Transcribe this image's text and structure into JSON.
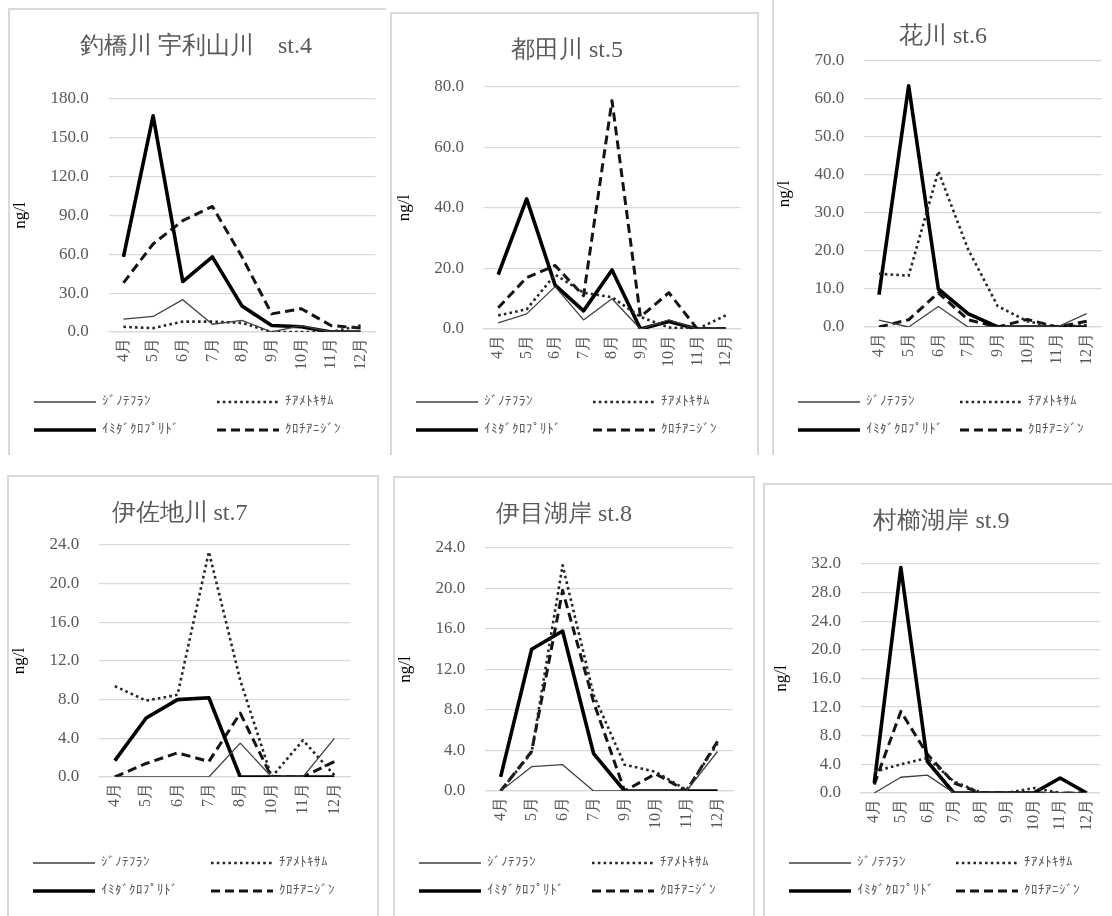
{
  "chart_data": [
    {
      "type": "line",
      "title": "釣橋川 宇利山川　st.4",
      "ylabel": "ng/l",
      "categories": [
        "4月",
        "5月",
        "6月",
        "7月",
        "8月",
        "9月",
        "10月",
        "11月",
        "12月"
      ],
      "series": [
        {
          "name": "ｼﾞﾉﾃﾌﾗﾝ",
          "color": "#404040",
          "line_style": "solid",
          "values": [
            10,
            12,
            25,
            6,
            9,
            0,
            5,
            0,
            0
          ]
        },
        {
          "name": "ﾁｱﾒﾄｷｻﾑ",
          "color": "#262626",
          "line_style": "dotted",
          "values": [
            4,
            3,
            8,
            8,
            7,
            0,
            0,
            0,
            5
          ]
        },
        {
          "name": "ｲﾐﾀﾞｸﾛﾌﾟﾘﾄﾞ",
          "color": "#000000",
          "line_style": "solid",
          "values": [
            58,
            167,
            39,
            58,
            20,
            5,
            4,
            0,
            0
          ]
        },
        {
          "name": "ｸﾛﾁｱﾆｼﾞﾝ",
          "color": "#141414",
          "line_style": "dashed",
          "values": [
            38,
            68,
            86,
            97,
            58,
            14,
            18,
            5,
            3
          ]
        }
      ],
      "ylim": [
        0,
        180
      ],
      "yticks": [
        {
          "value": 0,
          "label": "0.0"
        },
        {
          "value": 30,
          "label": "30.0"
        },
        {
          "value": 60,
          "label": "60.0"
        },
        {
          "value": 90,
          "label": "90.0"
        },
        {
          "value": 120,
          "label": "120.0"
        },
        {
          "value": 150,
          "label": "150.0"
        },
        {
          "value": 180,
          "label": "180.0"
        }
      ],
      "grid": "y",
      "legend": "bottom",
      "marker": "none"
    },
    {
      "type": "line",
      "title": "都田川 st.5",
      "ylabel": "ng/l",
      "categories": [
        "4月",
        "5月",
        "6月",
        "7月",
        "8月",
        "9月",
        "10月",
        "11月",
        "12月"
      ],
      "series": [
        {
          "name": "ｼﾞﾉﾃﾌﾗﾝ",
          "color": "#404040",
          "line_style": "solid",
          "values": [
            2,
            5,
            14,
            3,
            10,
            0,
            3,
            0,
            0
          ]
        },
        {
          "name": "ﾁｱﾒﾄｷｻﾑ",
          "color": "#262626",
          "line_style": "dotted",
          "values": [
            4.5,
            6.5,
            18,
            12,
            10.5,
            4,
            0.5,
            0,
            4.5
          ]
        },
        {
          "name": "ｲﾐﾀﾞｸﾛﾌﾟﾘﾄﾞ",
          "color": "#000000",
          "line_style": "solid",
          "values": [
            18,
            43,
            14.5,
            6,
            19.5,
            0,
            2.5,
            0,
            0
          ]
        },
        {
          "name": "ｸﾛﾁｱﾆｼﾞﾝ",
          "color": "#141414",
          "line_style": "dashed",
          "values": [
            7,
            17,
            21,
            11,
            75.5,
            4,
            12,
            0,
            0
          ]
        }
      ],
      "ylim": [
        0,
        80
      ],
      "yticks": [
        {
          "value": 0,
          "label": "0.0"
        },
        {
          "value": 20,
          "label": "20.0"
        },
        {
          "value": 40,
          "label": "40.0"
        },
        {
          "value": 60,
          "label": "60.0"
        },
        {
          "value": 80,
          "label": "80.0"
        }
      ],
      "grid": "y",
      "legend": "bottom",
      "marker": "none"
    },
    {
      "type": "line",
      "title": "花川 st.6",
      "ylabel": "ng/l",
      "categories": [
        "4月",
        "5月",
        "6月",
        "7月",
        "9月",
        "10月",
        "11月",
        "12月"
      ],
      "series": [
        {
          "name": "ｼﾞﾉﾃﾌﾗﾝ",
          "color": "#404040",
          "line_style": "solid",
          "values": [
            1.8,
            0,
            5.4,
            0,
            0,
            0,
            0,
            3.5
          ]
        },
        {
          "name": "ﾁｱﾒﾄｷｻﾑ",
          "color": "#262626",
          "line_style": "dotted",
          "values": [
            14,
            13.5,
            41,
            20.5,
            5.5,
            1.5,
            0,
            0.5
          ]
        },
        {
          "name": "ｲﾐﾀﾞｸﾛﾌﾟﾘﾄﾞ",
          "color": "#000000",
          "line_style": "solid",
          "values": [
            8.5,
            63.5,
            10,
            3.5,
            0,
            0,
            0,
            0
          ]
        },
        {
          "name": "ｸﾛﾁｱﾆｼﾞﾝ",
          "color": "#141414",
          "line_style": "dashed",
          "values": [
            0,
            1.9,
            9,
            1.9,
            0,
            2,
            0,
            1.5
          ]
        }
      ],
      "ylim": [
        0,
        70
      ],
      "yticks": [
        {
          "value": 0,
          "label": "0.0"
        },
        {
          "value": 10,
          "label": "10.0"
        },
        {
          "value": 20,
          "label": "20.0"
        },
        {
          "value": 30,
          "label": "30.0"
        },
        {
          "value": 40,
          "label": "40.0"
        },
        {
          "value": 50,
          "label": "50.0"
        },
        {
          "value": 60,
          "label": "60.0"
        },
        {
          "value": 70,
          "label": "70.0"
        }
      ],
      "grid": "y",
      "legend": "bottom",
      "marker": "none"
    },
    {
      "type": "line",
      "title": "伊佐地川 st.7",
      "ylabel": "ng/l",
      "categories": [
        "4月",
        "5月",
        "6月",
        "7月",
        "8月",
        "10月",
        "11月",
        "12月"
      ],
      "series": [
        {
          "name": "ｼﾞﾉﾃﾌﾗﾝ",
          "color": "#404040",
          "line_style": "solid",
          "values": [
            0,
            0,
            0,
            0,
            3.5,
            0,
            0,
            4
          ]
        },
        {
          "name": "ﾁｱﾒﾄｷｻﾑ",
          "color": "#262626",
          "line_style": "dotted",
          "values": [
            9.4,
            7.9,
            8.5,
            23.3,
            10,
            0,
            3.8,
            0.2
          ]
        },
        {
          "name": "ｲﾐﾀﾞｸﾛﾌﾟﾘﾄﾞ",
          "color": "#000000",
          "line_style": "solid",
          "values": [
            1.7,
            6.1,
            8,
            8.2,
            0,
            0,
            0,
            0
          ]
        },
        {
          "name": "ｸﾛﾁｱﾆｼﾞﾝ",
          "color": "#141414",
          "line_style": "dashed",
          "values": [
            0,
            1.4,
            2.5,
            1.6,
            6.6,
            0,
            0,
            1.6
          ]
        }
      ],
      "ylim": [
        0,
        24
      ],
      "yticks": [
        {
          "value": 0,
          "label": "0.0"
        },
        {
          "value": 4,
          "label": "4.0"
        },
        {
          "value": 8,
          "label": "8.0"
        },
        {
          "value": 12,
          "label": "12.0"
        },
        {
          "value": 16,
          "label": "16.0"
        },
        {
          "value": 20,
          "label": "20.0"
        },
        {
          "value": 24,
          "label": "24.0"
        }
      ],
      "grid": "y",
      "legend": "bottom",
      "marker": "none"
    },
    {
      "type": "line",
      "title": "伊目湖岸 st.8",
      "ylabel": "ng/l",
      "categories": [
        "4月",
        "5月",
        "6月",
        "7月",
        "9月",
        "10月",
        "11月",
        "12月"
      ],
      "series": [
        {
          "name": "ｼﾞﾉﾃﾌﾗﾝ",
          "color": "#404040",
          "line_style": "solid",
          "values": [
            0,
            2.4,
            2.6,
            0,
            0,
            0,
            0,
            3.9
          ]
        },
        {
          "name": "ﾁｱﾒﾄｷｻﾑ",
          "color": "#262626",
          "line_style": "dotted",
          "values": [
            0,
            3.8,
            22.3,
            9.5,
            2.6,
            1.9,
            0.1,
            4.7
          ]
        },
        {
          "name": "ｲﾐﾀﾞｸﾛﾌﾟﾘﾄﾞ",
          "color": "#000000",
          "line_style": "solid",
          "values": [
            1.4,
            14,
            15.8,
            3.7,
            0,
            0,
            0,
            0
          ]
        },
        {
          "name": "ｸﾛﾁｱﾆｼﾞﾝ",
          "color": "#141414",
          "line_style": "dashed",
          "values": [
            0,
            3.9,
            19.8,
            8.8,
            0,
            1.7,
            0,
            4.9
          ]
        }
      ],
      "ylim": [
        0,
        24
      ],
      "yticks": [
        {
          "value": 0,
          "label": "0.0"
        },
        {
          "value": 4,
          "label": "4.0"
        },
        {
          "value": 8,
          "label": "8.0"
        },
        {
          "value": 12,
          "label": "12.0"
        },
        {
          "value": 16,
          "label": "16.0"
        },
        {
          "value": 20,
          "label": "20.0"
        },
        {
          "value": 24,
          "label": "24.0"
        }
      ],
      "grid": "y",
      "legend": "bottom",
      "marker": "none"
    },
    {
      "type": "line",
      "title": "村櫛湖岸 st.9",
      "ylabel": "ng/l",
      "categories": [
        "4月",
        "5月",
        "6月",
        "7月",
        "8月",
        "9月",
        "10月",
        "11月",
        "12月"
      ],
      "series": [
        {
          "name": "ｼﾞﾉﾃﾌﾗﾝ",
          "color": "#404040",
          "line_style": "solid",
          "values": [
            0,
            2.2,
            2.5,
            0,
            0,
            0,
            0,
            0,
            0
          ]
        },
        {
          "name": "ﾁｱﾒﾄｷｻﾑ",
          "color": "#262626",
          "line_style": "dotted",
          "values": [
            3,
            4,
            4.9,
            1.6,
            0.1,
            0,
            0.7,
            0,
            0
          ]
        },
        {
          "name": "ｲﾐﾀﾞｸﾛﾌﾟﾘﾄﾞ",
          "color": "#000000",
          "line_style": "solid",
          "values": [
            1.4,
            31.5,
            4.4,
            0,
            0,
            0,
            0,
            2.1,
            0
          ]
        },
        {
          "name": "ｸﾛﾁｱﾆｼﾞﾝ",
          "color": "#141414",
          "line_style": "dashed",
          "values": [
            1.2,
            11.4,
            5.4,
            1.4,
            0,
            0,
            0,
            0,
            0
          ]
        }
      ],
      "ylim": [
        0,
        32
      ],
      "yticks": [
        {
          "value": 0,
          "label": "0.0"
        },
        {
          "value": 4,
          "label": "4.0"
        },
        {
          "value": 8,
          "label": "8.0"
        },
        {
          "value": 12,
          "label": "12.0"
        },
        {
          "value": 16,
          "label": "16.0"
        },
        {
          "value": 20,
          "label": "20.0"
        },
        {
          "value": 24,
          "label": "24.0"
        },
        {
          "value": 28,
          "label": "28.0"
        },
        {
          "value": 32,
          "label": "32.0"
        }
      ],
      "grid": "y",
      "legend": "bottom",
      "marker": "none"
    }
  ]
}
